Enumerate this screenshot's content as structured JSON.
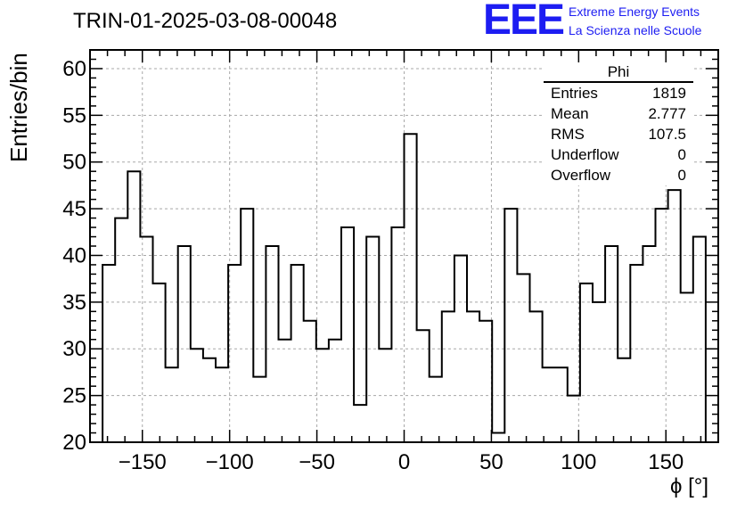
{
  "chart_data": {
    "type": "histogram",
    "title": "TRIN-01-2025-03-08-00048",
    "xlabel": "ϕ [°]",
    "ylabel": "Entries/bin",
    "xlim": [
      -180,
      180
    ],
    "ylim": [
      20,
      62
    ],
    "bin_width": 7.2,
    "x_ticks": [
      -150,
      -100,
      -50,
      0,
      50,
      100,
      150
    ],
    "x_tick_labels": [
      "−150",
      "−100",
      "−50",
      "0",
      "50",
      "100",
      "150"
    ],
    "y_ticks": [
      20,
      25,
      30,
      35,
      40,
      45,
      50,
      55,
      60
    ],
    "y_tick_labels": [
      "20",
      "25",
      "30",
      "35",
      "40",
      "45",
      "50",
      "55",
      "60"
    ],
    "grid": true,
    "bins": [
      {
        "low": -172.8,
        "high": -165.6,
        "value": 39
      },
      {
        "low": -165.6,
        "high": -158.4,
        "value": 44
      },
      {
        "low": -158.4,
        "high": -151.2,
        "value": 49
      },
      {
        "low": -151.2,
        "high": -144.0,
        "value": 42
      },
      {
        "low": -144.0,
        "high": -136.8,
        "value": 37
      },
      {
        "low": -136.8,
        "high": -129.6,
        "value": 28
      },
      {
        "low": -129.6,
        "high": -122.4,
        "value": 41
      },
      {
        "low": -122.4,
        "high": -115.2,
        "value": 30
      },
      {
        "low": -115.2,
        "high": -108.0,
        "value": 29
      },
      {
        "low": -108.0,
        "high": -100.8,
        "value": 28
      },
      {
        "low": -100.8,
        "high": -93.6,
        "value": 39
      },
      {
        "low": -93.6,
        "high": -86.4,
        "value": 45
      },
      {
        "low": -86.4,
        "high": -79.2,
        "value": 27
      },
      {
        "low": -79.2,
        "high": -72.0,
        "value": 41
      },
      {
        "low": -72.0,
        "high": -64.8,
        "value": 31
      },
      {
        "low": -64.8,
        "high": -57.6,
        "value": 39
      },
      {
        "low": -57.6,
        "high": -50.4,
        "value": 33
      },
      {
        "low": -50.4,
        "high": -43.2,
        "value": 30
      },
      {
        "low": -43.2,
        "high": -36.0,
        "value": 31
      },
      {
        "low": -36.0,
        "high": -28.8,
        "value": 43
      },
      {
        "low": -28.8,
        "high": -21.6,
        "value": 24
      },
      {
        "low": -21.6,
        "high": -14.4,
        "value": 42
      },
      {
        "low": -14.4,
        "high": -7.2,
        "value": 30
      },
      {
        "low": -7.2,
        "high": 0.0,
        "value": 43
      },
      {
        "low": 0.0,
        "high": 7.2,
        "value": 53
      },
      {
        "low": 7.2,
        "high": 14.4,
        "value": 32
      },
      {
        "low": 14.4,
        "high": 21.6,
        "value": 27
      },
      {
        "low": 21.6,
        "high": 28.8,
        "value": 34
      },
      {
        "low": 28.8,
        "high": 36.0,
        "value": 40
      },
      {
        "low": 36.0,
        "high": 43.2,
        "value": 34
      },
      {
        "low": 43.2,
        "high": 50.4,
        "value": 33
      },
      {
        "low": 50.4,
        "high": 57.6,
        "value": 21
      },
      {
        "low": 57.6,
        "high": 64.8,
        "value": 45
      },
      {
        "low": 64.8,
        "high": 72.0,
        "value": 38
      },
      {
        "low": 72.0,
        "high": 79.2,
        "value": 34
      },
      {
        "low": 79.2,
        "high": 86.4,
        "value": 28
      },
      {
        "low": 86.4,
        "high": 93.6,
        "value": 28
      },
      {
        "low": 93.6,
        "high": 100.8,
        "value": 25
      },
      {
        "low": 100.8,
        "high": 108.0,
        "value": 37
      },
      {
        "low": 108.0,
        "high": 115.2,
        "value": 35
      },
      {
        "low": 115.2,
        "high": 122.4,
        "value": 41
      },
      {
        "low": 122.4,
        "high": 129.6,
        "value": 29
      },
      {
        "low": 129.6,
        "high": 136.8,
        "value": 39
      },
      {
        "low": 136.8,
        "high": 144.0,
        "value": 41
      },
      {
        "low": 144.0,
        "high": 151.2,
        "value": 45
      },
      {
        "low": 151.2,
        "high": 158.4,
        "value": 47
      },
      {
        "low": 158.4,
        "high": 165.6,
        "value": 36
      },
      {
        "low": 165.6,
        "high": 172.8,
        "value": 42
      }
    ]
  },
  "stats_box": {
    "title": "Phi",
    "rows": [
      {
        "label": "Entries",
        "value": "1819"
      },
      {
        "label": "Mean",
        "value": "2.777"
      },
      {
        "label": "RMS",
        "value": "107.5"
      },
      {
        "label": "Underflow",
        "value": "0"
      },
      {
        "label": "Overflow",
        "value": "0"
      }
    ]
  },
  "logo": {
    "mark": "EEE",
    "line1": "Extreme Energy Events",
    "line2": "La Scienza nelle Scuole",
    "color": "#1d1df2"
  }
}
